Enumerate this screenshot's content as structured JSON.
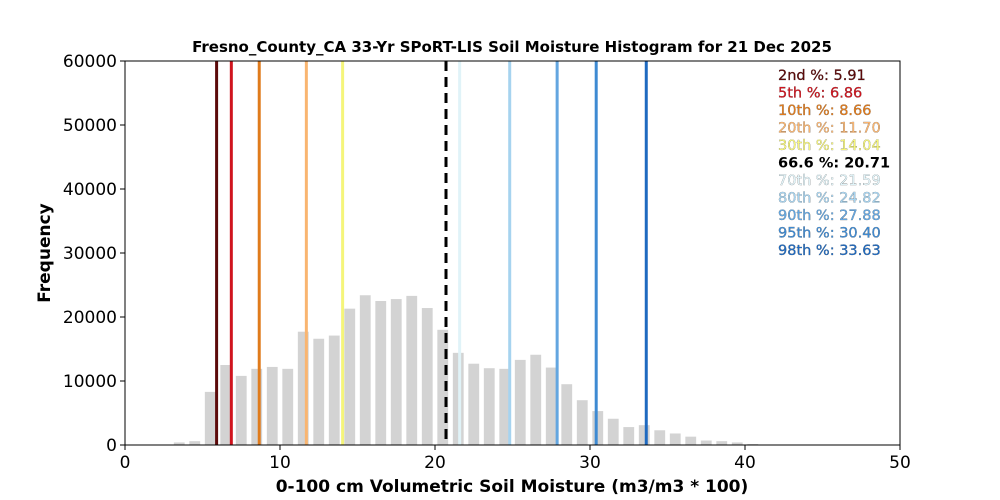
{
  "chart_data": {
    "type": "bar",
    "title": "Fresno_County_CA 33-Yr SPoRT-LIS Soil Moisture Histogram for 21 Dec 2025",
    "xlabel": "0-100 cm Volumetric Soil Moisture (m3/m3 * 100)",
    "ylabel": "Frequency",
    "xlim": [
      0,
      50
    ],
    "ylim": [
      0,
      60000
    ],
    "xticks": [
      "0",
      "10",
      "20",
      "30",
      "40",
      "50"
    ],
    "yticks": [
      "0",
      "10000",
      "20000",
      "30000",
      "40000",
      "50000",
      "60000"
    ],
    "bar_color": "#d3d3d3",
    "bins": [
      {
        "x": 3.5,
        "value": 400
      },
      {
        "x": 4.5,
        "value": 600
      },
      {
        "x": 5.5,
        "value": 8300
      },
      {
        "x": 6.5,
        "value": 12500
      },
      {
        "x": 7.5,
        "value": 10800
      },
      {
        "x": 8.5,
        "value": 11900
      },
      {
        "x": 9.5,
        "value": 12200
      },
      {
        "x": 10.5,
        "value": 11900
      },
      {
        "x": 11.5,
        "value": 17700
      },
      {
        "x": 12.5,
        "value": 16600
      },
      {
        "x": 13.5,
        "value": 17100
      },
      {
        "x": 14.5,
        "value": 21300
      },
      {
        "x": 15.5,
        "value": 23400
      },
      {
        "x": 16.5,
        "value": 22500
      },
      {
        "x": 17.5,
        "value": 22800
      },
      {
        "x": 18.5,
        "value": 23300
      },
      {
        "x": 19.5,
        "value": 21400
      },
      {
        "x": 20.5,
        "value": 18000
      },
      {
        "x": 21.5,
        "value": 14400
      },
      {
        "x": 22.5,
        "value": 12700
      },
      {
        "x": 23.5,
        "value": 12000
      },
      {
        "x": 24.5,
        "value": 11900
      },
      {
        "x": 25.5,
        "value": 13300
      },
      {
        "x": 26.5,
        "value": 14100
      },
      {
        "x": 27.5,
        "value": 12100
      },
      {
        "x": 28.5,
        "value": 9500
      },
      {
        "x": 29.5,
        "value": 7000
      },
      {
        "x": 30.5,
        "value": 5300
      },
      {
        "x": 31.5,
        "value": 4100
      },
      {
        "x": 32.5,
        "value": 2800
      },
      {
        "x": 33.5,
        "value": 3100
      },
      {
        "x": 34.5,
        "value": 2300
      },
      {
        "x": 35.5,
        "value": 1800
      },
      {
        "x": 36.5,
        "value": 1300
      },
      {
        "x": 37.5,
        "value": 700
      },
      {
        "x": 38.5,
        "value": 600
      },
      {
        "x": 39.5,
        "value": 400
      },
      {
        "x": 40.5,
        "value": 150
      }
    ],
    "percentile_lines": [
      {
        "label": "2nd %: 5.91",
        "value": 5.91,
        "color": "#5c0a0a",
        "dashed": false
      },
      {
        "label": "5th %: 6.86",
        "value": 6.86,
        "color": "#d0141e",
        "dashed": false
      },
      {
        "label": "10th %: 8.66",
        "value": 8.66,
        "color": "#e07b1c",
        "dashed": false
      },
      {
        "label": "20th %: 11.70",
        "value": 11.7,
        "color": "#f9b570",
        "dashed": false
      },
      {
        "label": "30th %: 14.04",
        "value": 14.04,
        "color": "#f5f57a",
        "dashed": false
      },
      {
        "label": "66.6 %: 20.71",
        "value": 20.71,
        "color": "#000000",
        "dashed": true
      },
      {
        "label": "70th %: 21.59",
        "value": 21.59,
        "color": "#e0f3f8",
        "dashed": false
      },
      {
        "label": "80th %: 24.82",
        "value": 24.82,
        "color": "#a6d3ef",
        "dashed": false
      },
      {
        "label": "90th %: 27.88",
        "value": 27.88,
        "color": "#63a6e0",
        "dashed": false
      },
      {
        "label": "95th %: 30.40",
        "value": 30.4,
        "color": "#3e8ad2",
        "dashed": false
      },
      {
        "label": "98th %: 33.63",
        "value": 33.63,
        "color": "#1f6ac0",
        "dashed": false
      }
    ],
    "legend_placement": "top-right"
  }
}
